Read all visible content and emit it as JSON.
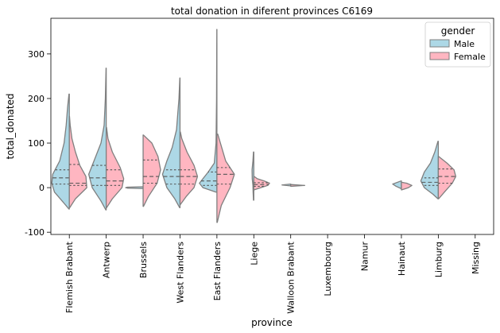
{
  "chart_data": {
    "type": "violin",
    "title": "total donation in diferent provinces C6169",
    "xlabel": "province",
    "ylabel": "total_donated",
    "categories": [
      "Flemish Brabant",
      "Antwerp",
      "Brussels",
      "West Flanders",
      "East Flanders",
      "Liege",
      "Walloon Brabant",
      "Luxembourg",
      "Namur",
      "Hainaut",
      "Limburg",
      "Missing"
    ],
    "ylim": [
      -105,
      380
    ],
    "yticks": [
      -100,
      0,
      100,
      200,
      300
    ],
    "split": true,
    "legend": {
      "title": "gender",
      "placement": "top-right",
      "entries": [
        {
          "label": "Male",
          "color": "#add8e6"
        },
        {
          "label": "Female",
          "color": "#ffb6c1"
        }
      ]
    },
    "series": [
      {
        "name": "Male",
        "color": "#add8e6",
        "violins": [
          {
            "category": "Flemish Brabant",
            "profile": [
              [
                -48,
                0.02
              ],
              [
                -35,
                0.3
              ],
              [
                -10,
                0.85
              ],
              [
                10,
                1.0
              ],
              [
                30,
                0.95
              ],
              [
                60,
                0.55
              ],
              [
                100,
                0.3
              ],
              [
                140,
                0.18
              ],
              [
                180,
                0.1
              ],
              [
                210,
                0.02
              ]
            ],
            "quartiles": [
              8,
              22,
              40
            ]
          },
          {
            "category": "Antwerp",
            "profile": [
              [
                -50,
                0.02
              ],
              [
                -30,
                0.3
              ],
              [
                0,
                0.8
              ],
              [
                30,
                1.0
              ],
              [
                60,
                0.7
              ],
              [
                100,
                0.3
              ],
              [
                140,
                0.12
              ],
              [
                200,
                0.05
              ],
              [
                268,
                0.01
              ]
            ],
            "quartiles": [
              5,
              22,
              50
            ]
          },
          {
            "category": "Brussels",
            "profile": [
              [
                -2,
                0.02
              ],
              [
                -1,
                0.9
              ],
              [
                0,
                1.0
              ],
              [
                1,
                0.9
              ],
              [
                2,
                0.02
              ]
            ],
            "quartiles": []
          },
          {
            "category": "West Flanders",
            "profile": [
              [
                -45,
                0.02
              ],
              [
                -25,
                0.3
              ],
              [
                0,
                0.75
              ],
              [
                30,
                1.0
              ],
              [
                60,
                0.75
              ],
              [
                90,
                0.45
              ],
              [
                130,
                0.2
              ],
              [
                200,
                0.06
              ],
              [
                246,
                0.01
              ]
            ],
            "quartiles": [
              8,
              25,
              40
            ]
          },
          {
            "category": "East Flanders",
            "profile": [
              [
                -10,
                0.05
              ],
              [
                0,
                0.8
              ],
              [
                10,
                1.0
              ],
              [
                20,
                0.8
              ],
              [
                35,
                0.5
              ],
              [
                55,
                0.15
              ],
              [
                100,
                0.05
              ],
              [
                200,
                0.02
              ],
              [
                355,
                0.005
              ]
            ],
            "quartiles": [
              5,
              15,
              35
            ]
          },
          {
            "category": "Liege",
            "profile": [
              [
                -28,
                0.02
              ],
              [
                -10,
                0.04
              ],
              [
                5,
                0.05
              ],
              [
                20,
                0.09
              ],
              [
                40,
                0.1
              ],
              [
                60,
                0.05
              ],
              [
                80,
                0.02
              ]
            ],
            "quartiles": []
          },
          {
            "category": "Walloon Brabant",
            "profile": [
              [
                4,
                0.02
              ],
              [
                6,
                0.5
              ],
              [
                8,
                0.02
              ]
            ],
            "quartiles": []
          },
          {
            "category": "Hainaut",
            "profile": [
              [
                -2,
                0.02
              ],
              [
                3,
                0.3
              ],
              [
                8,
                0.5
              ],
              [
                15,
                0.02
              ]
            ],
            "quartiles": []
          },
          {
            "category": "Limburg",
            "profile": [
              [
                -25,
                0.02
              ],
              [
                -15,
                0.3
              ],
              [
                0,
                0.8
              ],
              [
                15,
                1.0
              ],
              [
                35,
                0.8
              ],
              [
                55,
                0.45
              ],
              [
                80,
                0.2
              ],
              [
                104,
                0.02
              ]
            ],
            "quartiles": [
              5,
              12,
              22
            ]
          }
        ]
      },
      {
        "name": "Female",
        "color": "#ffb6c1",
        "violins": [
          {
            "category": "Flemish Brabant",
            "profile": [
              [
                -45,
                0.02
              ],
              [
                -25,
                0.35
              ],
              [
                0,
                1.0
              ],
              [
                25,
                0.95
              ],
              [
                50,
                0.6
              ],
              [
                80,
                0.35
              ],
              [
                110,
                0.15
              ],
              [
                140,
                0.05
              ],
              [
                160,
                0.01
              ]
            ],
            "quartiles": [
              5,
              10,
              52
            ]
          },
          {
            "category": "Antwerp",
            "profile": [
              [
                -45,
                0.02
              ],
              [
                -25,
                0.35
              ],
              [
                0,
                0.9
              ],
              [
                20,
                1.0
              ],
              [
                45,
                0.8
              ],
              [
                80,
                0.35
              ],
              [
                110,
                0.1
              ],
              [
                135,
                0.02
              ]
            ],
            "quartiles": [
              5,
              15,
              40
            ]
          },
          {
            "category": "Brussels",
            "profile": [
              [
                -42,
                0.02
              ],
              [
                -20,
                0.3
              ],
              [
                10,
                0.8
              ],
              [
                40,
                1.0
              ],
              [
                70,
                0.85
              ],
              [
                100,
                0.5
              ],
              [
                118,
                0.02
              ]
            ],
            "quartiles": [
              10,
              25,
              62
            ]
          },
          {
            "category": "West Flanders",
            "profile": [
              [
                -38,
                0.02
              ],
              [
                -20,
                0.35
              ],
              [
                0,
                0.8
              ],
              [
                25,
                1.0
              ],
              [
                50,
                0.8
              ],
              [
                80,
                0.4
              ],
              [
                110,
                0.1
              ],
              [
                125,
                0.02
              ]
            ],
            "quartiles": [
              8,
              25,
              40
            ]
          },
          {
            "category": "East Flanders",
            "profile": [
              [
                -78,
                0.02
              ],
              [
                -40,
                0.25
              ],
              [
                0,
                0.75
              ],
              [
                30,
                1.0
              ],
              [
                60,
                0.5
              ],
              [
                100,
                0.2
              ],
              [
                120,
                0.05
              ]
            ],
            "quartiles": [
              8,
              30,
              45
            ]
          },
          {
            "category": "Liege",
            "profile": [
              [
                -5,
                0.02
              ],
              [
                0,
                0.4
              ],
              [
                5,
                0.8
              ],
              [
                10,
                0.9
              ],
              [
                15,
                0.6
              ],
              [
                20,
                0.2
              ],
              [
                25,
                0.02
              ]
            ],
            "quartiles": [
              3,
              7,
              11
            ]
          },
          {
            "category": "Walloon Brabant",
            "profile": [
              [
                3,
                0.02
              ],
              [
                5,
                0.8
              ],
              [
                7,
                0.02
              ]
            ],
            "quartiles": []
          },
          {
            "category": "Hainaut",
            "profile": [
              [
                -5,
                0.02
              ],
              [
                0,
                0.4
              ],
              [
                5,
                0.6
              ],
              [
                10,
                0.3
              ],
              [
                12,
                0.02
              ]
            ],
            "quartiles": []
          },
          {
            "category": "Limburg",
            "profile": [
              [
                -25,
                0.02
              ],
              [
                -10,
                0.35
              ],
              [
                10,
                0.8
              ],
              [
                25,
                1.0
              ],
              [
                40,
                0.9
              ],
              [
                55,
                0.5
              ],
              [
                70,
                0.02
              ]
            ],
            "quartiles": [
              10,
              25,
              42
            ]
          }
        ]
      }
    ]
  }
}
